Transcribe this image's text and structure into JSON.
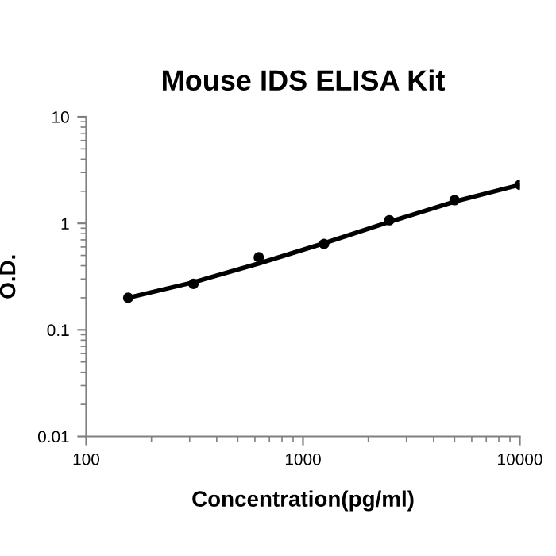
{
  "chart_data": {
    "type": "scatter",
    "title": "Mouse IDS ELISA Kit",
    "xlabel": "Concentration(pg/ml)",
    "ylabel": "O.D.",
    "log": "xy",
    "xlim": [
      100,
      10000
    ],
    "xticks": [
      100,
      1000,
      10000
    ],
    "ylim": [
      0.01,
      10
    ],
    "yticks": [
      0.01,
      0.1,
      1,
      10
    ],
    "grid": false,
    "legend": false,
    "series": [
      {
        "color": "#000000",
        "marker": "circle",
        "x": [
          156.25,
          312.5,
          625,
          1250,
          2500,
          5000,
          10000
        ],
        "values": [
          0.2,
          0.27,
          0.48,
          0.64,
          1.07,
          1.65,
          2.3
        ]
      },
      {
        "type": "line",
        "color": "#000000",
        "marker": "none",
        "line_style": "solid",
        "x": [
          156.25,
          312.5,
          625,
          1250,
          2500,
          5000,
          10000
        ],
        "values": [
          0.2,
          0.28,
          0.42,
          0.65,
          1.03,
          1.6,
          2.3
        ]
      }
    ]
  }
}
